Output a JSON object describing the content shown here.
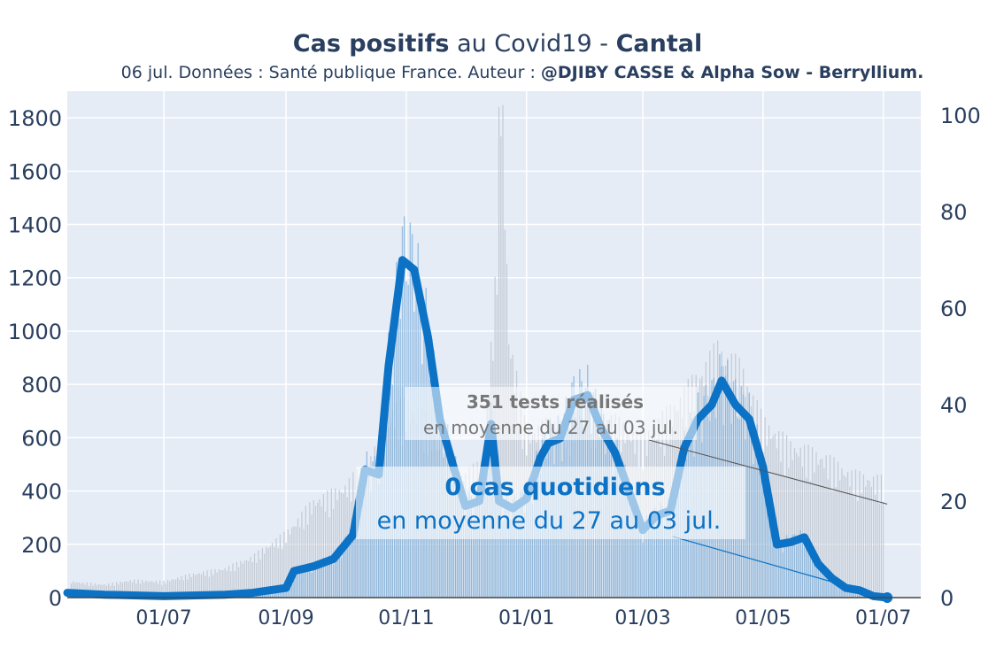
{
  "chart_data": {
    "type": "bar+line",
    "title_bold_1": "Cas positifs",
    "title_mid": " au Covid19 - ",
    "title_bold_2": "Cantal",
    "subtitle_plain": "06 jul. Données : Santé publique France. Auteur : ",
    "subtitle_bold": "@DJIBY CASSE & Alpha Sow - Berryllium.",
    "x_tick_labels": [
      "01/07",
      "01/09",
      "01/11",
      "01/01",
      "01/03",
      "01/05",
      "01/07"
    ],
    "x_tick_dates": [
      "2020-07-01",
      "2020-09-01",
      "2020-11-01",
      "2021-01-01",
      "2021-03-01",
      "2021-05-01",
      "2021-07-01"
    ],
    "x_range": [
      "2020-05-13",
      "2021-07-20"
    ],
    "y_left_ticks": [
      0,
      200,
      400,
      600,
      800,
      1000,
      1200,
      1400,
      1600,
      1800
    ],
    "y_left_range": [
      0,
      1900
    ],
    "y_right_ticks": [
      0,
      20,
      40,
      60,
      80,
      100
    ],
    "y_right_range": [
      0,
      105
    ],
    "grid": true,
    "colors": {
      "plot_bg": "#e5ecf6",
      "cases_line": "#0c72c5",
      "cases_line_light": "#a8d0ef",
      "cases_bar": "#7fb0dc",
      "tests_bar": "#c4cad3",
      "tests_text": "#777777",
      "cases_text": "#0c72c5",
      "axis_text": "#2a3f5f"
    },
    "series": [
      {
        "axis": "left",
        "kind": "bars",
        "points": [
          [
            "2020-05-15",
            55
          ],
          [
            "2020-06-01",
            45
          ],
          [
            "2020-06-15",
            60
          ],
          [
            "2020-07-01",
            55
          ],
          [
            "2020-07-15",
            80
          ],
          [
            "2020-08-01",
            100
          ],
          [
            "2020-08-15",
            140
          ],
          [
            "2020-09-01",
            220
          ],
          [
            "2020-09-15",
            330
          ],
          [
            "2020-09-22",
            350
          ],
          [
            "2020-10-01",
            380
          ],
          [
            "2020-10-15",
            480
          ],
          [
            "2020-10-25",
            640
          ],
          [
            "2020-11-01",
            660
          ],
          [
            "2020-11-10",
            620
          ],
          [
            "2020-11-20",
            480
          ],
          [
            "2020-12-01",
            420
          ],
          [
            "2020-12-10",
            460
          ],
          [
            "2020-12-16",
            1050
          ],
          [
            "2020-12-19",
            1880
          ],
          [
            "2020-12-23",
            900
          ],
          [
            "2021-01-01",
            560
          ],
          [
            "2021-01-15",
            600
          ],
          [
            "2021-02-01",
            640
          ],
          [
            "2021-02-15",
            600
          ],
          [
            "2021-03-01",
            540
          ],
          [
            "2021-03-15",
            640
          ],
          [
            "2021-04-01",
            780
          ],
          [
            "2021-04-08",
            850
          ],
          [
            "2021-04-20",
            780
          ],
          [
            "2021-05-01",
            600
          ],
          [
            "2021-05-15",
            520
          ],
          [
            "2021-06-01",
            480
          ],
          [
            "2021-06-15",
            420
          ],
          [
            "2021-07-01",
            400
          ]
        ]
      },
      {
        "axis": "right",
        "kind": "line",
        "points": [
          [
            "2020-05-13",
            1.0
          ],
          [
            "2020-06-01",
            0.6
          ],
          [
            "2020-07-01",
            0.3
          ],
          [
            "2020-08-01",
            0.6
          ],
          [
            "2020-08-15",
            1.0
          ],
          [
            "2020-09-01",
            2.0
          ],
          [
            "2020-09-05",
            5.5
          ],
          [
            "2020-09-15",
            6.5
          ],
          [
            "2020-09-25",
            8.0
          ],
          [
            "2020-10-05",
            13.0
          ],
          [
            "2020-10-11",
            26.5
          ],
          [
            "2020-10-18",
            25.5
          ],
          [
            "2020-10-23",
            48.0
          ],
          [
            "2020-10-30",
            70.0
          ],
          [
            "2020-11-05",
            68.0
          ],
          [
            "2020-11-12",
            54.0
          ],
          [
            "2020-11-18",
            37.0
          ],
          [
            "2020-11-25",
            27.0
          ],
          [
            "2020-12-01",
            19.0
          ],
          [
            "2020-12-08",
            20.0
          ],
          [
            "2020-12-14",
            36.0
          ],
          [
            "2020-12-18",
            20.0
          ],
          [
            "2020-12-25",
            18.5
          ],
          [
            "2021-01-01",
            20.5
          ],
          [
            "2021-01-08",
            29.0
          ],
          [
            "2021-01-12",
            32.0
          ],
          [
            "2021-01-18",
            33.0
          ],
          [
            "2021-01-25",
            41.0
          ],
          [
            "2021-02-01",
            42.0
          ],
          [
            "2021-02-08",
            35.0
          ],
          [
            "2021-02-15",
            30.0
          ],
          [
            "2021-02-22",
            22.0
          ],
          [
            "2021-03-01",
            14.0
          ],
          [
            "2021-03-08",
            17.0
          ],
          [
            "2021-03-15",
            18.0
          ],
          [
            "2021-03-22",
            31.0
          ],
          [
            "2021-03-29",
            37.0
          ],
          [
            "2021-04-05",
            40.0
          ],
          [
            "2021-04-10",
            45.0
          ],
          [
            "2021-04-17",
            40.0
          ],
          [
            "2021-04-24",
            37.0
          ],
          [
            "2021-05-01",
            27.0
          ],
          [
            "2021-05-08",
            11.0
          ],
          [
            "2021-05-15",
            11.5
          ],
          [
            "2021-05-22",
            12.5
          ],
          [
            "2021-05-29",
            7.0
          ],
          [
            "2021-06-05",
            4.0
          ],
          [
            "2021-06-12",
            2.0
          ],
          [
            "2021-06-19",
            1.5
          ],
          [
            "2021-06-26",
            0.3
          ],
          [
            "2021-07-03",
            0.0
          ]
        ]
      }
    ],
    "annotations": {
      "tests_value": "351",
      "tests_label": " tests réalisés",
      "tests_period": "en moyenne du 27 au 03 jul.",
      "cases_value": "0",
      "cases_label": " cas quotidiens",
      "cases_period": "en moyenne du 27 au 03 jul."
    }
  }
}
